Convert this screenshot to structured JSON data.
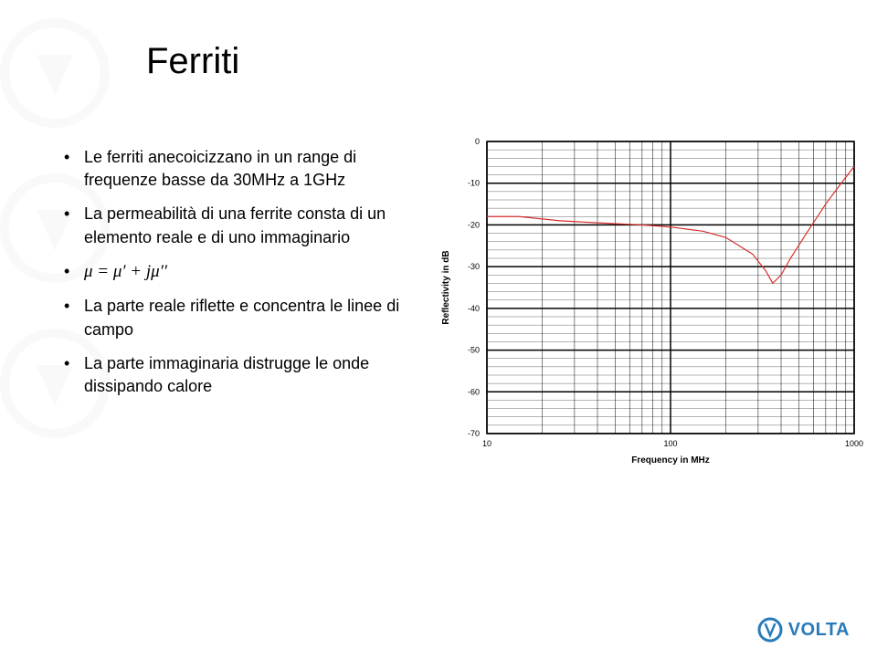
{
  "title": "Ferriti",
  "bullets": [
    "Le ferriti anecoicizzano in un range di frequenze basse da 30MHz a 1GHz",
    "La permeabilità di una ferrite consta di un elemento reale e di uno immaginario",
    "μ = μ′ + jμ′′",
    "La parte reale riflette e concentra le linee di campo",
    "La parte immaginaria distrugge le onde dissipando calore"
  ],
  "logo_text": "VOLTA",
  "chart": {
    "type": "line",
    "x_label": "Frequency in MHz",
    "y_label": "Reflectivity in dB",
    "x_scale": "log",
    "xlim": [
      10,
      1000
    ],
    "ylim": [
      -70,
      0
    ],
    "x_ticks": [
      10,
      100,
      1000
    ],
    "x_tick_labels": [
      "10",
      "100",
      "1000"
    ],
    "y_ticks": [
      0,
      -10,
      -20,
      -30,
      -40,
      -50,
      -60,
      -70
    ],
    "y_tick_labels": [
      "0",
      "-10",
      "-20",
      "-30",
      "-40",
      "-50",
      "-60",
      "-70"
    ],
    "ytick_step": 10,
    "grid_color": "#000000",
    "background_color": "#ffffff",
    "line_color": "#d82e2e",
    "line_width": 1.2,
    "axis_width": 1.5,
    "label_fontsize": 10,
    "tick_fontsize": 9,
    "series": [
      {
        "x": 10,
        "y": -18
      },
      {
        "x": 15,
        "y": -18
      },
      {
        "x": 25,
        "y": -19
      },
      {
        "x": 40,
        "y": -19.5
      },
      {
        "x": 70,
        "y": -20
      },
      {
        "x": 100,
        "y": -20.5
      },
      {
        "x": 150,
        "y": -21.5
      },
      {
        "x": 200,
        "y": -23
      },
      {
        "x": 280,
        "y": -27
      },
      {
        "x": 330,
        "y": -31
      },
      {
        "x": 360,
        "y": -34
      },
      {
        "x": 400,
        "y": -32
      },
      {
        "x": 450,
        "y": -28
      },
      {
        "x": 550,
        "y": -22
      },
      {
        "x": 700,
        "y": -15
      },
      {
        "x": 850,
        "y": -10
      },
      {
        "x": 1000,
        "y": -6
      }
    ]
  },
  "colors": {
    "title": "#000000",
    "text": "#000000",
    "logo_blue": "#287bbb",
    "watermark": "#888888"
  }
}
